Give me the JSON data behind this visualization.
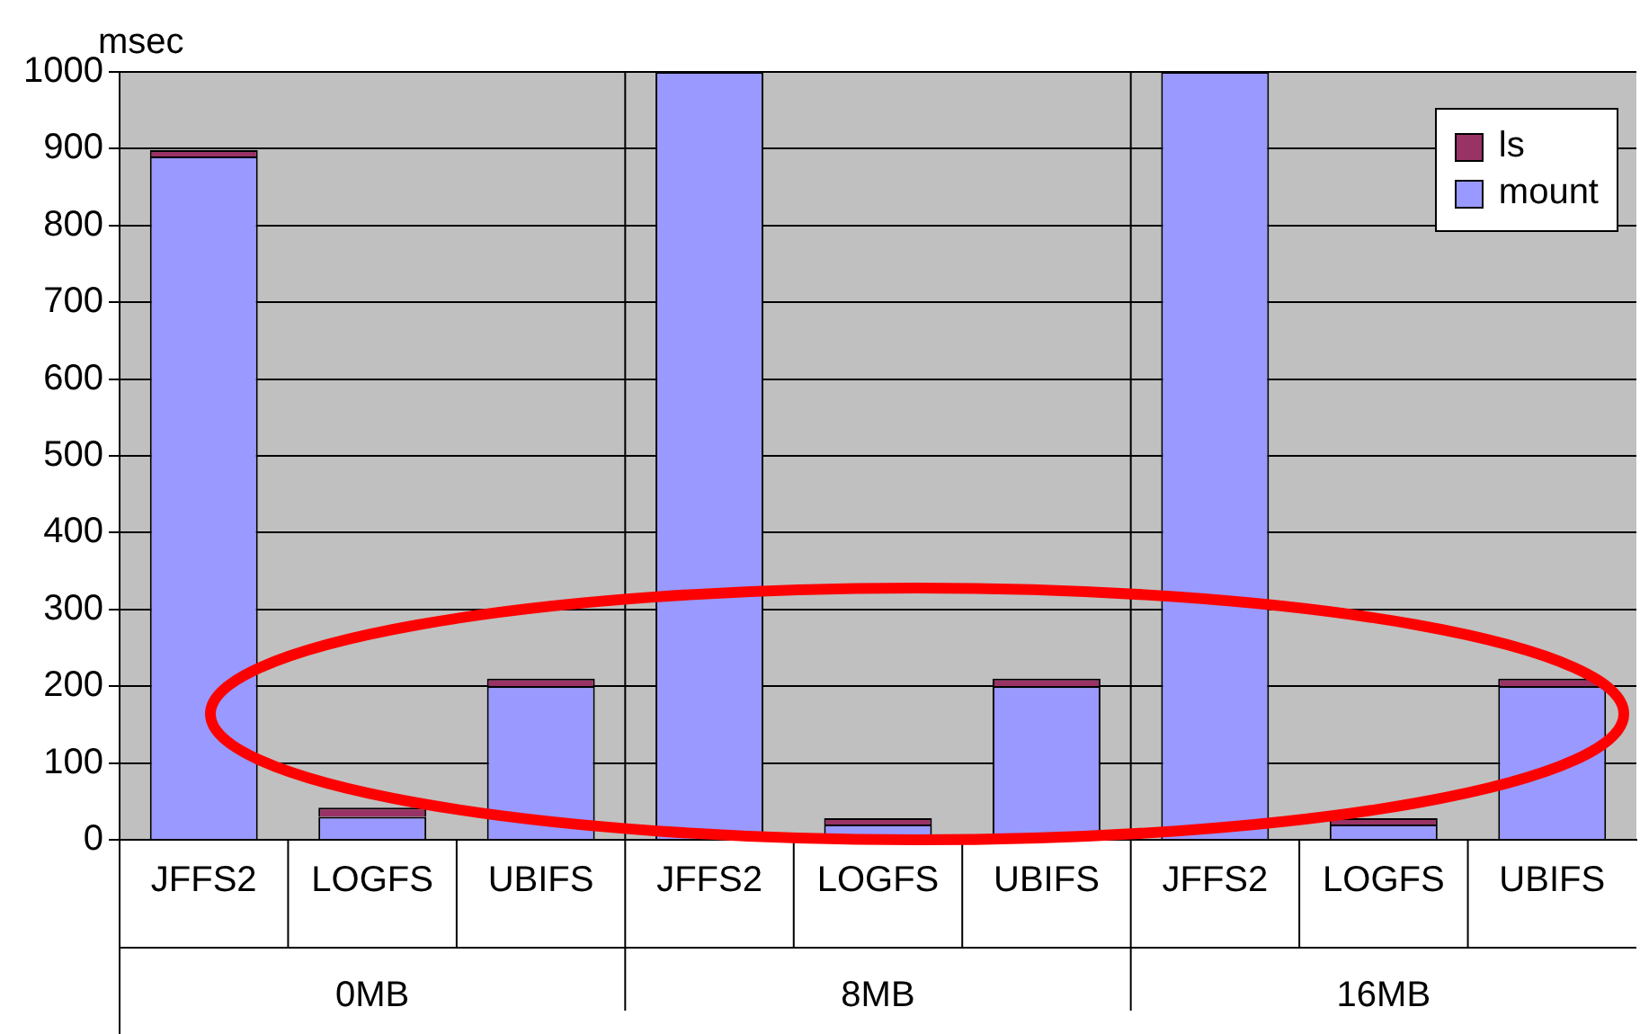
{
  "chart_data": {
    "type": "bar",
    "stacked": true,
    "ylabel": "msec",
    "categories": [
      "JFFS2",
      "LOGFS",
      "UBIFS",
      "JFFS2",
      "LOGFS",
      "UBIFS",
      "JFFS2",
      "LOGFS",
      "UBIFS"
    ],
    "series": [
      {
        "name": "mount",
        "color": "#9999ff",
        "values": [
          890,
          30,
          200,
          1000,
          20,
          200,
          1000,
          20,
          200
        ]
      },
      {
        "name": "ls",
        "color": "#993366",
        "values": [
          8,
          12,
          10,
          null,
          8,
          10,
          null,
          8,
          10
        ]
      }
    ],
    "annotations": [
      "0MB",
      "8MB",
      "16MB"
    ],
    "ylim": [
      0,
      1000
    ],
    "yticks": [
      0,
      100,
      200,
      300,
      400,
      500,
      600,
      700,
      800,
      900,
      {
        "value": 1000,
        "label": "1000"
      }
    ],
    "grid": "y",
    "legend": "top right"
  }
}
